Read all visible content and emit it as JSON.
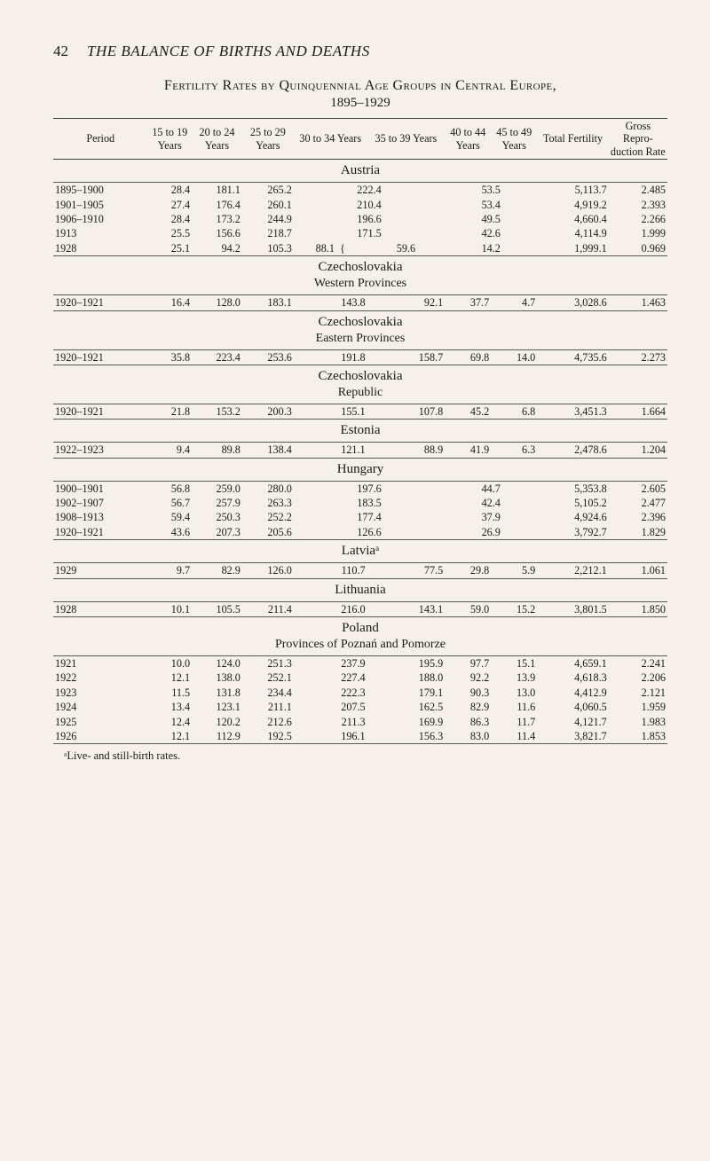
{
  "header": {
    "page_number": "42",
    "running_head": "THE BALANCE OF BIRTHS AND DEATHS"
  },
  "title_line": "Fertility Rates by Quinquennial Age Groups in Central Europe,",
  "sub_years": "1895–1929",
  "col_headers": {
    "period": "Period",
    "c15": "15 to 19 Years",
    "c20": "20 to 24 Years",
    "c25": "25 to 29 Years",
    "c30": "30 to 34 Years",
    "c35": "35 to 39 Years",
    "c40": "40 to 44 Years",
    "c45": "45 to 49 Years",
    "total": "Total Fertility",
    "gross": "Gross Repro-duction Rate"
  },
  "sections": [
    {
      "label": "Austria",
      "rows": [
        {
          "period": "1895–1900",
          "a": "28.4",
          "b": "181.1",
          "c": "265.2",
          "d": "222.4",
          "e": "",
          "f": "53.5",
          "g": "",
          "tf": "5,113.7",
          "gr": "2.485",
          "merge_de": true,
          "merge_fg": true
        },
        {
          "period": "1901–1905",
          "a": "27.4",
          "b": "176.4",
          "c": "260.1",
          "d": "210.4",
          "e": "",
          "f": "53.4",
          "g": "",
          "tf": "4,919.2",
          "gr": "2.393",
          "merge_de": true,
          "merge_fg": true
        },
        {
          "period": "1906–1910",
          "a": "28.4",
          "b": "173.2",
          "c": "244.9",
          "d": "196.6",
          "e": "",
          "f": "49.5",
          "g": "",
          "tf": "4,660.4",
          "gr": "2.266",
          "merge_de": true,
          "merge_fg": true
        },
        {
          "period": "1913",
          "a": "25.5",
          "b": "156.6",
          "c": "218.7",
          "d": "171.5",
          "e": "",
          "f": "42.6",
          "g": "",
          "tf": "4,114.9",
          "gr": "1.999",
          "merge_de": true,
          "merge_fg": true
        },
        {
          "period": "1928",
          "a": "25.1",
          "b": "94.2",
          "c": "105.3",
          "d": "88.1",
          "e": "59.6",
          "f": "14.2",
          "g": "",
          "tf": "1,999.1",
          "gr": "0.969",
          "merge_de": false,
          "merge_fg": true,
          "d_split": true
        }
      ]
    },
    {
      "label": "Czechoslovakia",
      "sublabel": "Western Provinces",
      "rows": [
        {
          "period": "1920–1921",
          "a": "16.4",
          "b": "128.0",
          "c": "183.1",
          "d": "143.8",
          "e": "92.1",
          "f": "37.7",
          "g": "4.7",
          "tf": "3,028.6",
          "gr": "1.463"
        }
      ]
    },
    {
      "label": "Czechoslovakia",
      "sublabel": "Eastern Provinces",
      "rows": [
        {
          "period": "1920–1921",
          "a": "35.8",
          "b": "223.4",
          "c": "253.6",
          "d": "191.8",
          "e": "158.7",
          "f": "69.8",
          "g": "14.0",
          "tf": "4,735.6",
          "gr": "2.273"
        }
      ]
    },
    {
      "label": "Czechoslovakia",
      "sublabel": "Republic",
      "rows": [
        {
          "period": "1920–1921",
          "a": "21.8",
          "b": "153.2",
          "c": "200.3",
          "d": "155.1",
          "e": "107.8",
          "f": "45.2",
          "g": "6.8",
          "tf": "3,451.3",
          "gr": "1.664"
        }
      ]
    },
    {
      "label": "Estonia",
      "rows": [
        {
          "period": "1922–1923",
          "a": "9.4",
          "b": "89.8",
          "c": "138.4",
          "d": "121.1",
          "e": "88.9",
          "f": "41.9",
          "g": "6.3",
          "tf": "2,478.6",
          "gr": "1.204"
        }
      ]
    },
    {
      "label": "Hungary",
      "rows": [
        {
          "period": "1900–1901",
          "a": "56.8",
          "b": "259.0",
          "c": "280.0",
          "d": "197.6",
          "e": "",
          "f": "44.7",
          "g": "",
          "tf": "5,353.8",
          "gr": "2.605",
          "merge_de": true,
          "merge_fg": true
        },
        {
          "period": "1902–1907",
          "a": "56.7",
          "b": "257.9",
          "c": "263.3",
          "d": "183.5",
          "e": "",
          "f": "42.4",
          "g": "",
          "tf": "5,105.2",
          "gr": "2.477",
          "merge_de": true,
          "merge_fg": true
        },
        {
          "period": "1908–1913",
          "a": "59.4",
          "b": "250.3",
          "c": "252.2",
          "d": "177.4",
          "e": "",
          "f": "37.9",
          "g": "",
          "tf": "4,924.6",
          "gr": "2.396",
          "merge_de": true,
          "merge_fg": true
        },
        {
          "period": "1920–1921",
          "a": "43.6",
          "b": "207.3",
          "c": "205.6",
          "d": "126.6",
          "e": "",
          "f": "26.9",
          "g": "",
          "tf": "3,792.7",
          "gr": "1.829",
          "merge_de": true,
          "merge_fg": true
        }
      ]
    },
    {
      "label": "Latviaᵃ",
      "rows": [
        {
          "period": "1929",
          "a": "9.7",
          "b": "82.9",
          "c": "126.0",
          "d": "110.7",
          "e": "77.5",
          "f": "29.8",
          "g": "5.9",
          "tf": "2,212.1",
          "gr": "1.061"
        }
      ]
    },
    {
      "label": "Lithuania",
      "rows": [
        {
          "period": "1928",
          "a": "10.1",
          "b": "105.5",
          "c": "211.4",
          "d": "216.0",
          "e": "143.1",
          "f": "59.0",
          "g": "15.2",
          "tf": "3,801.5",
          "gr": "1.850"
        }
      ]
    },
    {
      "label": "Poland",
      "sublabel": "Provinces of Poznań and Pomorze",
      "rows": [
        {
          "period": "1921",
          "a": "10.0",
          "b": "124.0",
          "c": "251.3",
          "d": "237.9",
          "e": "195.9",
          "f": "97.7",
          "g": "15.1",
          "tf": "4,659.1",
          "gr": "2.241"
        },
        {
          "period": "1922",
          "a": "12.1",
          "b": "138.0",
          "c": "252.1",
          "d": "227.4",
          "e": "188.0",
          "f": "92.2",
          "g": "13.9",
          "tf": "4,618.3",
          "gr": "2.206"
        },
        {
          "period": "1923",
          "a": "11.5",
          "b": "131.8",
          "c": "234.4",
          "d": "222.3",
          "e": "179.1",
          "f": "90.3",
          "g": "13.0",
          "tf": "4,412.9",
          "gr": "2.121"
        },
        {
          "period": "1924",
          "a": "13.4",
          "b": "123.1",
          "c": "211.1",
          "d": "207.5",
          "e": "162.5",
          "f": "82.9",
          "g": "11.6",
          "tf": "4,060.5",
          "gr": "1.959"
        },
        {
          "period": "1925",
          "a": "12.4",
          "b": "120.2",
          "c": "212.6",
          "d": "211.3",
          "e": "169.9",
          "f": "86.3",
          "g": "11.7",
          "tf": "4,121.7",
          "gr": "1.983"
        },
        {
          "period": "1926",
          "a": "12.1",
          "b": "112.9",
          "c": "192.5",
          "d": "196.1",
          "e": "156.3",
          "f": "83.0",
          "g": "11.4",
          "tf": "3,821.7",
          "gr": "1.853"
        }
      ]
    }
  ],
  "footnote": "ᵃLive- and still-birth rates."
}
